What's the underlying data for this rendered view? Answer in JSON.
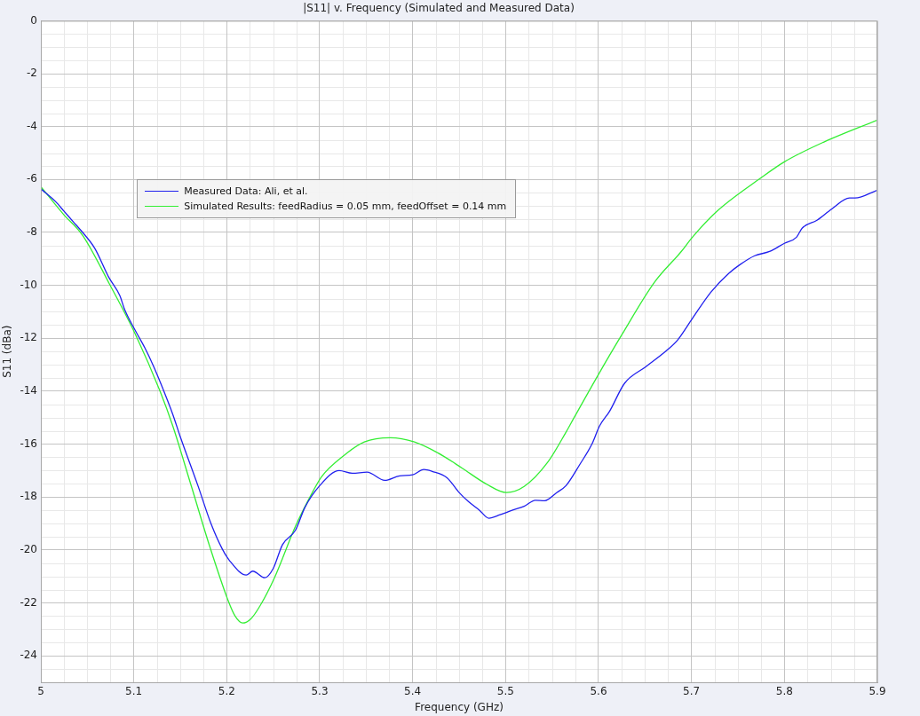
{
  "chart_data": {
    "type": "line",
    "title": "|S11| v. Frequency (Simulated and Measured Data)",
    "xlabel": "Frequency (GHz)",
    "ylabel": "S11 (dBa)",
    "xlim": [
      5,
      5.9
    ],
    "xticks": [
      5,
      5.1,
      5.2,
      5.3,
      5.4,
      5.5,
      5.6,
      5.7,
      5.8,
      5.9
    ],
    "ylim": [
      -25,
      0
    ],
    "yticks": [
      0,
      -2,
      -4,
      -6,
      -8,
      -10,
      -12,
      -14,
      -16,
      -18,
      -20,
      -22,
      -24
    ],
    "grid": true,
    "legend": "top left",
    "series": [
      {
        "name": "Measured Data: Ali, et al.",
        "color": "#2020ee",
        "x": [
          5.0,
          5.016,
          5.025,
          5.035,
          5.045,
          5.058,
          5.073,
          5.085,
          5.09,
          5.102,
          5.112,
          5.121,
          5.131,
          5.142,
          5.15,
          5.169,
          5.183,
          5.195,
          5.203,
          5.221,
          5.228,
          5.241,
          5.25,
          5.26,
          5.274,
          5.284,
          5.3,
          5.321,
          5.335,
          5.351,
          5.37,
          5.386,
          5.4,
          5.412,
          5.421,
          5.437,
          5.45,
          5.46,
          5.472,
          5.482,
          5.494,
          5.507,
          5.52,
          5.532,
          5.542,
          5.555,
          5.565,
          5.58,
          5.593,
          5.601,
          5.612,
          5.628,
          5.651,
          5.673,
          5.685,
          5.701,
          5.721,
          5.74,
          5.752,
          5.768,
          5.784,
          5.8,
          5.813,
          5.819,
          5.835,
          5.851,
          5.87,
          5.876,
          5.9
        ],
        "values": [
          -6.35,
          -6.84,
          -7.2,
          -7.6,
          -8.0,
          -8.6,
          -9.69,
          -10.39,
          -10.9,
          -11.73,
          -12.37,
          -13.04,
          -13.88,
          -14.88,
          -15.72,
          -17.57,
          -19.0,
          -19.95,
          -20.4,
          -20.95,
          -20.8,
          -21.05,
          -20.7,
          -19.8,
          -19.25,
          -18.4,
          -17.57,
          -17.0,
          -17.1,
          -17.06,
          -17.37,
          -17.2,
          -17.16,
          -16.96,
          -17.03,
          -17.27,
          -17.83,
          -18.17,
          -18.5,
          -18.8,
          -18.67,
          -18.5,
          -18.35,
          -18.12,
          -18.14,
          -17.83,
          -17.57,
          -16.76,
          -15.99,
          -15.32,
          -14.75,
          -13.7,
          -13.07,
          -12.47,
          -12.07,
          -11.25,
          -10.25,
          -9.55,
          -9.22,
          -8.88,
          -8.72,
          -8.41,
          -8.18,
          -7.84,
          -7.54,
          -7.11,
          -6.7,
          -6.7,
          -6.4
        ]
      },
      {
        "name": "Simulated Results: feedRadius = 0.05 mm, feedOffset = 0.14 mm",
        "color": "#33ee33",
        "x": [
          5.0,
          5.025,
          5.045,
          5.074,
          5.102,
          5.128,
          5.142,
          5.162,
          5.182,
          5.202,
          5.209,
          5.217,
          5.226,
          5.236,
          5.252,
          5.274,
          5.293,
          5.302,
          5.326,
          5.348,
          5.376,
          5.402,
          5.427,
          5.453,
          5.479,
          5.501,
          5.52,
          5.545,
          5.565,
          5.574,
          5.601,
          5.625,
          5.66,
          5.689,
          5.701,
          5.727,
          5.775,
          5.8,
          5.842,
          5.9
        ],
        "values": [
          -6.27,
          -7.34,
          -8.11,
          -9.96,
          -11.87,
          -13.98,
          -15.32,
          -17.6,
          -19.9,
          -21.96,
          -22.5,
          -22.76,
          -22.6,
          -22.1,
          -21.0,
          -19.1,
          -17.77,
          -17.23,
          -16.43,
          -15.92,
          -15.76,
          -15.92,
          -16.33,
          -16.9,
          -17.5,
          -17.83,
          -17.6,
          -16.7,
          -15.55,
          -14.98,
          -13.3,
          -11.87,
          -9.89,
          -8.72,
          -8.18,
          -7.21,
          -5.93,
          -5.33,
          -4.59,
          -3.75
        ]
      }
    ]
  }
}
